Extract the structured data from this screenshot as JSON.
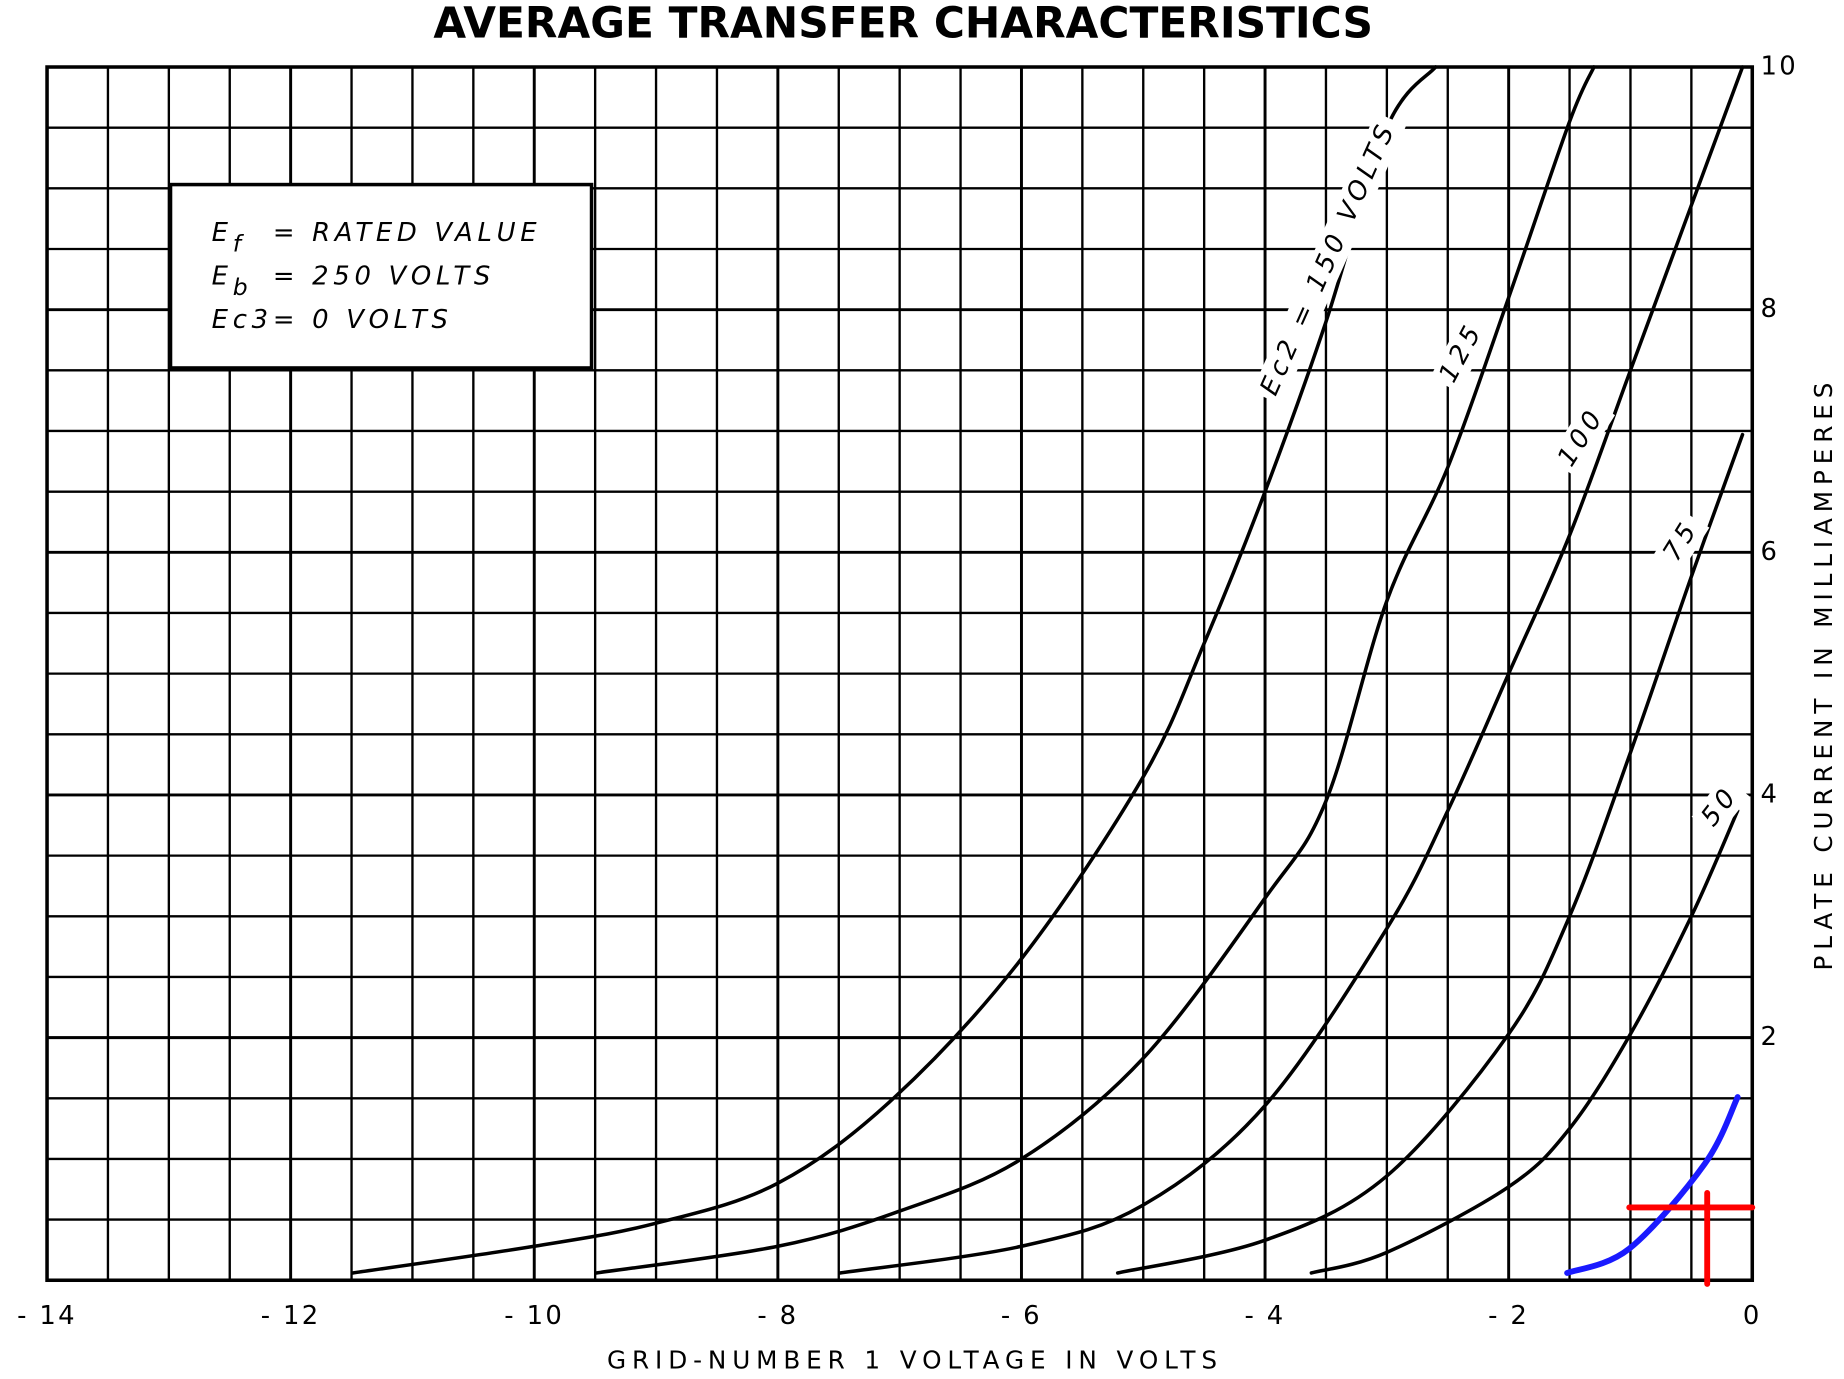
{
  "chart_data": {
    "type": "line",
    "title": "AVERAGE TRANSFER CHARACTERISTICS",
    "x_label": "GRID-NUMBER 1 VOLTAGE IN VOLTS",
    "y_label": "PLATE CURRENT IN MILLIAMPERES",
    "xlim": [
      -14,
      0
    ],
    "ylim": [
      0,
      10
    ],
    "xticks": [
      {
        "value": -14,
        "label": "- 14"
      },
      {
        "value": -12,
        "label": "- 12"
      },
      {
        "value": -10,
        "label": "- 10"
      },
      {
        "value": -8,
        "label": "- 8"
      },
      {
        "value": -6,
        "label": "- 6"
      },
      {
        "value": -4,
        "label": "- 4"
      },
      {
        "value": -2,
        "label": "- 2"
      },
      0
    ],
    "yticks": [
      2,
      4,
      6,
      8,
      10
    ],
    "grid": true,
    "minor_divisions": 4,
    "conditions": [
      {
        "symbol": "E",
        "subscript": "f",
        "text": "= RATED VALUE"
      },
      {
        "symbol": "E",
        "subscript": "b",
        "text": "= 250 VOLTS"
      },
      {
        "symbol": "Ec3",
        "text": "= 0 VOLTS"
      }
    ],
    "series": [
      {
        "name": "Ec2 = 150 VOLTS",
        "color": "#000000",
        "x": [
          -11.49,
          -10,
          -9,
          -8,
          -7.05,
          -6,
          -5,
          -4.5,
          -4,
          -3.5,
          -3,
          -2.6
        ],
        "values": [
          0.06,
          0.28,
          0.47,
          0.8,
          1.5,
          2.65,
          4.15,
          5.25,
          6.5,
          7.9,
          9.5,
          10
        ]
      },
      {
        "name": "125",
        "color": "#000000",
        "x": [
          -9.49,
          -8,
          -7,
          -6,
          -5,
          -4,
          -3.5,
          -3,
          -2.5,
          -2,
          -1.5,
          -1.3
        ],
        "values": [
          0.06,
          0.28,
          0.57,
          1.0,
          1.83,
          3.15,
          3.95,
          5.6,
          6.7,
          8.1,
          9.55,
          10
        ]
      },
      {
        "name": "100",
        "color": "#000000",
        "x": [
          -7.49,
          -6,
          -5,
          -4,
          -3,
          -2.5,
          -2,
          -1.5,
          -1,
          -0.5,
          -0.08
        ],
        "values": [
          0.06,
          0.28,
          0.62,
          1.44,
          2.9,
          3.87,
          5.0,
          6.14,
          7.5,
          8.86,
          10
        ]
      },
      {
        "name": "75",
        "color": "#000000",
        "x": [
          -5.21,
          -4,
          -3,
          -2,
          -1.5,
          -1,
          -0.5,
          -0.08
        ],
        "values": [
          0.06,
          0.33,
          0.86,
          2.03,
          3.0,
          4.35,
          5.8,
          6.97
        ]
      },
      {
        "name": "50",
        "color": "#000000",
        "x": [
          -3.62,
          -3,
          -2,
          -1.5,
          -1,
          -0.5,
          -0.12
        ],
        "values": [
          0.06,
          0.23,
          0.77,
          1.25,
          2.03,
          3.0,
          3.87
        ]
      }
    ],
    "annotation_lines": [
      {
        "color": "#1a1aff",
        "x": [
          -1.52,
          -1.01,
          -0.39,
          -0.12
        ],
        "values": [
          0.06,
          0.26,
          0.96,
          1.51
        ]
      },
      {
        "color": "#ff0000",
        "x": [
          -1.01,
          0
        ],
        "values": [
          0.6,
          0.6
        ]
      },
      {
        "color": "#ff0000",
        "x": [
          -0.37,
          -0.37
        ],
        "values": [
          0.72,
          -0.03
        ]
      }
    ]
  }
}
